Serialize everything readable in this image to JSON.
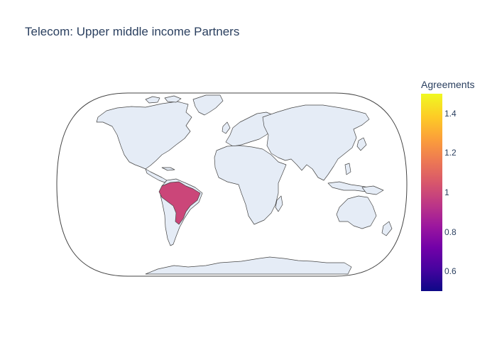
{
  "chart_data": {
    "type": "choropleth",
    "title": "Telecom: Upper middle income Partners",
    "projection": "natural earth",
    "locations": [
      "Brazil"
    ],
    "values": [
      1
    ],
    "colorbar": {
      "title": "Agreements",
      "range": [
        0.5,
        1.5
      ],
      "ticks": [
        "0.6",
        "0.8",
        "1",
        "1.2",
        "1.4"
      ],
      "colorscale": "Plasma"
    }
  },
  "colors": {
    "land": "#e5ecf6",
    "coastline": "#444444",
    "highlight": "#cb4679"
  }
}
